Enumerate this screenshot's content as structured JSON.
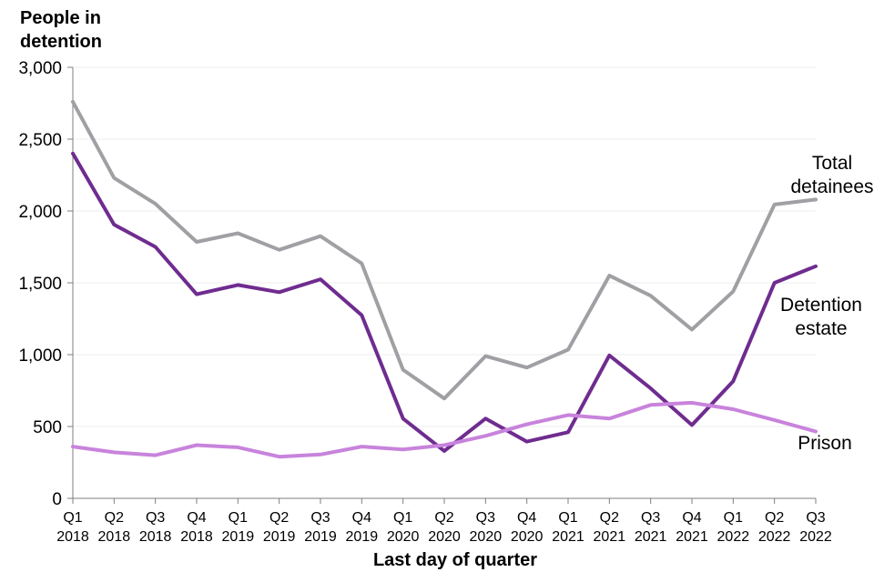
{
  "chart_data": {
    "type": "line",
    "ylabel_lines": [
      "People in",
      "detention"
    ],
    "xlabel": "Last day of quarter",
    "ylim": [
      0,
      3000
    ],
    "yticks": [
      0,
      500,
      1000,
      1500,
      2000,
      2500,
      3000
    ],
    "ytick_labels": [
      "0",
      "500",
      "1,000",
      "1,500",
      "2,000",
      "2,500",
      "3,000"
    ],
    "grid": true,
    "categories": [
      {
        "q": "Q1",
        "y": "2018"
      },
      {
        "q": "Q2",
        "y": "2018"
      },
      {
        "q": "Q3",
        "y": "2018"
      },
      {
        "q": "Q4",
        "y": "2018"
      },
      {
        "q": "Q1",
        "y": "2019"
      },
      {
        "q": "Q2",
        "y": "2019"
      },
      {
        "q": "Q3",
        "y": "2019"
      },
      {
        "q": "Q4",
        "y": "2019"
      },
      {
        "q": "Q1",
        "y": "2020"
      },
      {
        "q": "Q2",
        "y": "2020"
      },
      {
        "q": "Q3",
        "y": "2020"
      },
      {
        "q": "Q4",
        "y": "2020"
      },
      {
        "q": "Q1",
        "y": "2021"
      },
      {
        "q": "Q2",
        "y": "2021"
      },
      {
        "q": "Q3",
        "y": "2021"
      },
      {
        "q": "Q4",
        "y": "2021"
      },
      {
        "q": "Q1",
        "y": "2022"
      },
      {
        "q": "Q2",
        "y": "2022"
      },
      {
        "q": "Q3",
        "y": "2022"
      }
    ],
    "series": [
      {
        "key": "total",
        "label_lines": [
          "Total",
          "detainees"
        ],
        "color": "#A0A0A4",
        "values": [
          2760,
          2230,
          2050,
          1785,
          1845,
          1730,
          1825,
          1635,
          895,
          695,
          990,
          910,
          1035,
          1550,
          1410,
          1175,
          1440,
          2045,
          2080
        ]
      },
      {
        "key": "detention",
        "label_lines": [
          "Detention",
          "estate"
        ],
        "color": "#6F2C8F",
        "values": [
          2400,
          1905,
          1750,
          1420,
          1485,
          1435,
          1525,
          1275,
          555,
          330,
          555,
          395,
          460,
          995,
          765,
          510,
          815,
          1500,
          1615
        ]
      },
      {
        "key": "prison",
        "label_lines": [
          "Prison"
        ],
        "color": "#C883DC",
        "values": [
          360,
          320,
          300,
          370,
          355,
          290,
          305,
          360,
          340,
          370,
          435,
          515,
          580,
          555,
          650,
          665,
          620,
          545,
          465
        ]
      }
    ]
  }
}
